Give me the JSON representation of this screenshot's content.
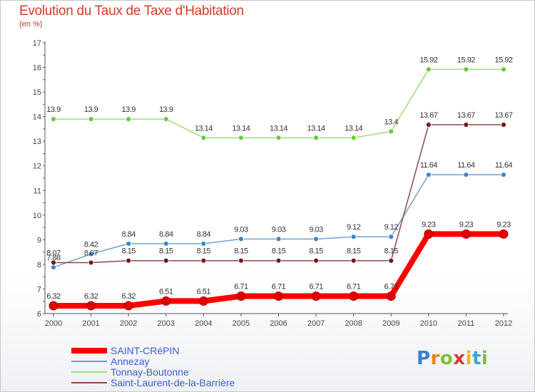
{
  "chart_data": {
    "type": "line",
    "title": "Evolution du Taux de Taxe d'Habitation",
    "ylabel": "(en %)",
    "xlabel": "",
    "ylim": [
      6,
      17
    ],
    "yticks": [
      "6",
      "7",
      "8",
      "9",
      "10",
      "11",
      "12",
      "13",
      "14",
      "15",
      "16",
      "17"
    ],
    "categories": [
      "2000",
      "2001",
      "2002",
      "2003",
      "2004",
      "2005",
      "2006",
      "2007",
      "2008",
      "2009",
      "2010",
      "2011",
      "2012"
    ],
    "legend_position": "bottom-left",
    "grid": false,
    "series": [
      {
        "name": "SAINT-CRéPIN",
        "color": "#ff0000",
        "marker": "#e00000",
        "thick": true,
        "values": [
          6.32,
          6.32,
          6.32,
          6.51,
          6.51,
          6.71,
          6.71,
          6.71,
          6.71,
          6.71,
          9.23,
          9.23,
          9.23
        ],
        "labels": [
          "6.32",
          "6.32",
          "6.32",
          "6.51",
          "6.51",
          "6.71",
          "6.71",
          "6.71",
          "6.71",
          "6.71",
          "9.23",
          "9.23",
          "9.23"
        ]
      },
      {
        "name": "Annezay",
        "color": "#6fa0d0",
        "marker": "#3d86cc",
        "thick": false,
        "values": [
          7.88,
          8.42,
          8.84,
          8.84,
          8.84,
          9.03,
          9.03,
          9.03,
          9.12,
          9.12,
          11.64,
          11.64,
          11.64
        ],
        "labels": [
          "7.88",
          "8.42",
          "8.84",
          "8.84",
          "8.84",
          "9.03",
          "9.03",
          "9.03",
          "9.12",
          "9.12",
          "11.64",
          "11.64",
          "11.64"
        ]
      },
      {
        "name": "Tonnay-Boutonne",
        "color": "#9fdc7c",
        "marker": "#6cc93e",
        "thick": false,
        "values": [
          13.9,
          13.9,
          13.9,
          13.9,
          13.14,
          13.14,
          13.14,
          13.14,
          13.14,
          13.4,
          15.92,
          15.92,
          15.92
        ],
        "labels": [
          "13.9",
          "13.9",
          "13.9",
          "13.9",
          "13.14",
          "13.14",
          "13.14",
          "13.14",
          "13.14",
          "13.4",
          "15.92",
          "15.92",
          "15.92"
        ]
      },
      {
        "name": "Saint-Laurent-de-la-Barrière",
        "color": "#8b4a4a",
        "marker": "#6e1c1c",
        "thick": false,
        "values": [
          8.07,
          8.07,
          8.15,
          8.15,
          8.15,
          8.15,
          8.15,
          8.15,
          8.15,
          8.15,
          13.67,
          13.67,
          13.67
        ],
        "labels": [
          "8.07",
          "8.07",
          "8.15",
          "8.15",
          "8.15",
          "8.15",
          "8.15",
          "8.15",
          "8.15",
          "8.15",
          "13.67",
          "13.67",
          "13.67"
        ]
      }
    ]
  },
  "logo": {
    "letters": [
      "P",
      "r",
      "o",
      "x",
      "i",
      "t",
      "i"
    ],
    "colors": [
      "#3a7fd6",
      "#f07f1a",
      "#7fbf3a",
      "#d63a3a",
      "#f0b51a",
      "#3aa6d6",
      "#7fbf3a"
    ]
  }
}
